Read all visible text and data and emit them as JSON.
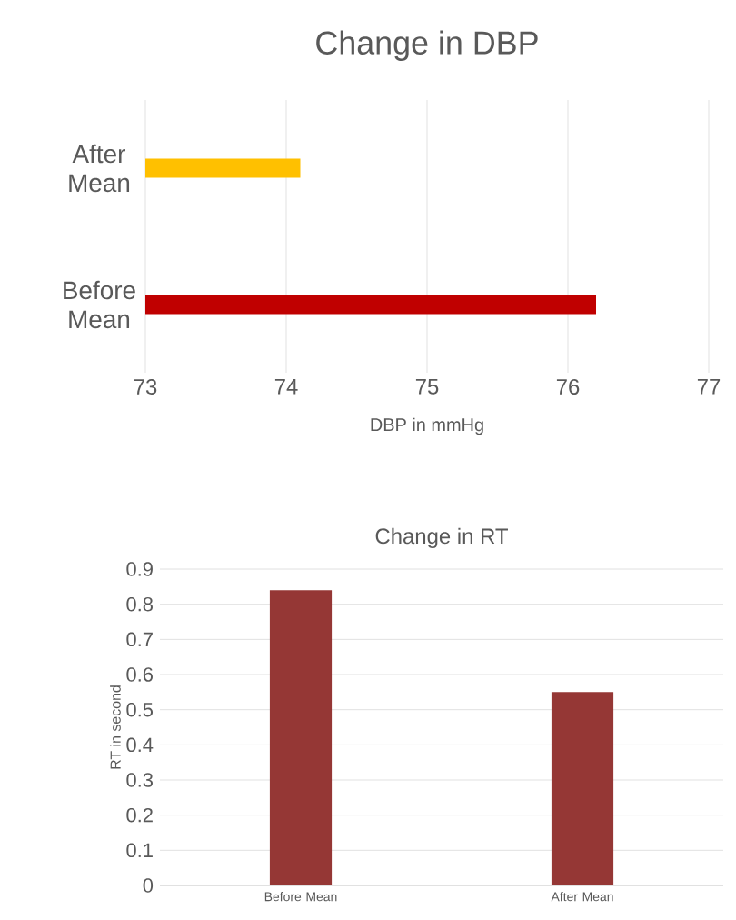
{
  "chart_data": [
    {
      "type": "bar",
      "orientation": "horizontal",
      "title": "Change in  DBP",
      "xlabel": "DBP in mmHg",
      "categories": [
        "After Mean",
        "Before Mean"
      ],
      "values": [
        74.1,
        76.2
      ],
      "colors": [
        "#ffc000",
        "#c00000"
      ],
      "xlim": [
        73,
        77
      ],
      "xticks": [
        73,
        74,
        75,
        76,
        77
      ],
      "grid": "x"
    },
    {
      "type": "bar",
      "title": "Change in RT",
      "ylabel": "RT in second",
      "categories": [
        "Before Mean",
        "After Mean"
      ],
      "values": [
        0.84,
        0.55
      ],
      "color": "#953735",
      "ylim": [
        0,
        0.9
      ],
      "yticks": [
        0,
        0.1,
        0.2,
        0.3,
        0.4,
        0.5,
        0.6,
        0.7,
        0.8,
        0.9
      ],
      "grid": "y"
    }
  ]
}
